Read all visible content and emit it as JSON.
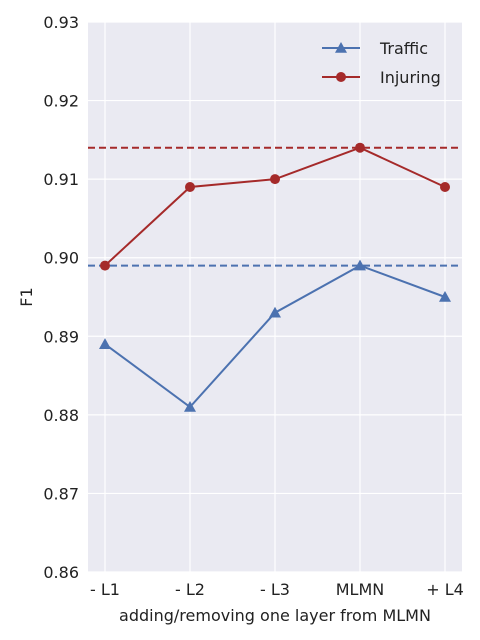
{
  "chart_data": {
    "type": "line",
    "title": "",
    "xlabel": "adding/removing one layer from MLMN",
    "ylabel": "F1",
    "categories": [
      "- L1",
      "- L2",
      "- L3",
      "MLMN",
      "+ L4"
    ],
    "ylim": [
      0.86,
      0.93
    ],
    "yticks": [
      "0.86",
      "0.87",
      "0.88",
      "0.89",
      "0.90",
      "0.91",
      "0.92",
      "0.93"
    ],
    "grid": true,
    "legend_position": "top-right",
    "series": [
      {
        "name": "Traffic",
        "values": [
          0.889,
          0.881,
          0.893,
          0.899,
          0.895
        ],
        "color": "#4c72b0",
        "marker": "triangle",
        "baseline": 0.899
      },
      {
        "name": "Injuring",
        "values": [
          0.899,
          0.909,
          0.91,
          0.914,
          0.909
        ],
        "color": "#a52a2a",
        "marker": "circle",
        "baseline": 0.914
      }
    ]
  }
}
